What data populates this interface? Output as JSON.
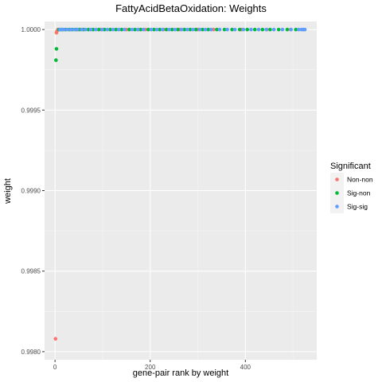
{
  "chart_data": {
    "type": "scatter",
    "title": "FattyAcidBetaOxidation: Weights",
    "xlabel": "gene-pair rank by weight",
    "ylabel": "weight",
    "xlim": [
      -22,
      550
    ],
    "ylim": [
      0.99795,
      1.00005
    ],
    "xticks": [
      0,
      200,
      400
    ],
    "xtick_labels": [
      "0",
      "200",
      "400"
    ],
    "yticks": [
      0.998,
      0.9985,
      0.999,
      0.9995,
      1.0
    ],
    "ytick_labels": [
      "0.9980",
      "0.9985",
      "0.9990",
      "0.9995",
      "1.0000"
    ],
    "grid": true,
    "legend": {
      "title": "Significant",
      "position": "right",
      "entries": [
        {
          "label": "Non-non",
          "color": "#F8766D"
        },
        {
          "label": "Sig-non",
          "color": "#00BA38"
        },
        {
          "label": "Sig-sig",
          "color": "#619CFF"
        }
      ]
    },
    "series": [
      {
        "name": "Non-non",
        "color": "#F8766D",
        "points": [
          [
            1,
            0.99808
          ],
          [
            3,
            0.99998
          ],
          [
            4,
            0.99999
          ],
          [
            6,
            1.0
          ],
          [
            48,
            1.0
          ],
          [
            97,
            1.0
          ],
          [
            150,
            1.0
          ],
          [
            175,
            1.0
          ],
          [
            190,
            1.0
          ],
          [
            228,
            1.0
          ],
          [
            262,
            1.0
          ],
          [
            300,
            1.0
          ],
          [
            333,
            1.0
          ],
          [
            392,
            1.0
          ],
          [
            445,
            1.0
          ],
          [
            495,
            1.0
          ]
        ]
      },
      {
        "name": "Sig-non",
        "color": "#00BA38",
        "points": [
          [
            2,
            0.99981
          ],
          [
            3,
            0.99988
          ],
          [
            8,
            1.0
          ],
          [
            12,
            1.0
          ],
          [
            16,
            1.0
          ],
          [
            22,
            1.0
          ],
          [
            30,
            1.0
          ],
          [
            36,
            1.0
          ],
          [
            44,
            1.0
          ],
          [
            52,
            1.0
          ],
          [
            60,
            1.0
          ],
          [
            70,
            1.0
          ],
          [
            80,
            1.0
          ],
          [
            92,
            1.0
          ],
          [
            104,
            1.0
          ],
          [
            116,
            1.0
          ],
          [
            128,
            1.0
          ],
          [
            140,
            1.0
          ],
          [
            156,
            1.0
          ],
          [
            168,
            1.0
          ],
          [
            180,
            1.0
          ],
          [
            196,
            1.0
          ],
          [
            208,
            1.0
          ],
          [
            220,
            1.0
          ],
          [
            234,
            1.0
          ],
          [
            246,
            1.0
          ],
          [
            258,
            1.0
          ],
          [
            272,
            1.0
          ],
          [
            284,
            1.0
          ],
          [
            296,
            1.0
          ],
          [
            310,
            1.0
          ],
          [
            322,
            1.0
          ],
          [
            340,
            1.0
          ],
          [
            356,
            1.0
          ],
          [
            372,
            1.0
          ],
          [
            388,
            1.0
          ],
          [
            404,
            1.0
          ],
          [
            420,
            1.0
          ],
          [
            436,
            1.0
          ],
          [
            452,
            1.0
          ],
          [
            470,
            1.0
          ],
          [
            488,
            1.0
          ],
          [
            506,
            1.0
          ]
        ]
      },
      {
        "name": "Sig-sig",
        "color": "#619CFF",
        "points": [
          [
            10,
            1.0
          ],
          [
            14,
            1.0
          ],
          [
            19,
            1.0
          ],
          [
            26,
            1.0
          ],
          [
            33,
            1.0
          ],
          [
            40,
            1.0
          ],
          [
            47,
            1.0
          ],
          [
            56,
            1.0
          ],
          [
            64,
            1.0
          ],
          [
            75,
            1.0
          ],
          [
            86,
            1.0
          ],
          [
            99,
            1.0
          ],
          [
            110,
            1.0
          ],
          [
            122,
            1.0
          ],
          [
            134,
            1.0
          ],
          [
            146,
            1.0
          ],
          [
            162,
            1.0
          ],
          [
            174,
            1.0
          ],
          [
            186,
            1.0
          ],
          [
            202,
            1.0
          ],
          [
            214,
            1.0
          ],
          [
            226,
            1.0
          ],
          [
            240,
            1.0
          ],
          [
            252,
            1.0
          ],
          [
            266,
            1.0
          ],
          [
            278,
            1.0
          ],
          [
            290,
            1.0
          ],
          [
            304,
            1.0
          ],
          [
            316,
            1.0
          ],
          [
            328,
            1.0
          ],
          [
            346,
            1.0
          ],
          [
            362,
            1.0
          ],
          [
            378,
            1.0
          ],
          [
            396,
            1.0
          ],
          [
            412,
            1.0
          ],
          [
            428,
            1.0
          ],
          [
            444,
            1.0
          ],
          [
            460,
            1.0
          ],
          [
            478,
            1.0
          ],
          [
            496,
            1.0
          ],
          [
            512,
            1.0
          ],
          [
            518,
            1.0
          ],
          [
            522,
            1.0
          ],
          [
            525,
            1.0
          ]
        ]
      }
    ]
  }
}
